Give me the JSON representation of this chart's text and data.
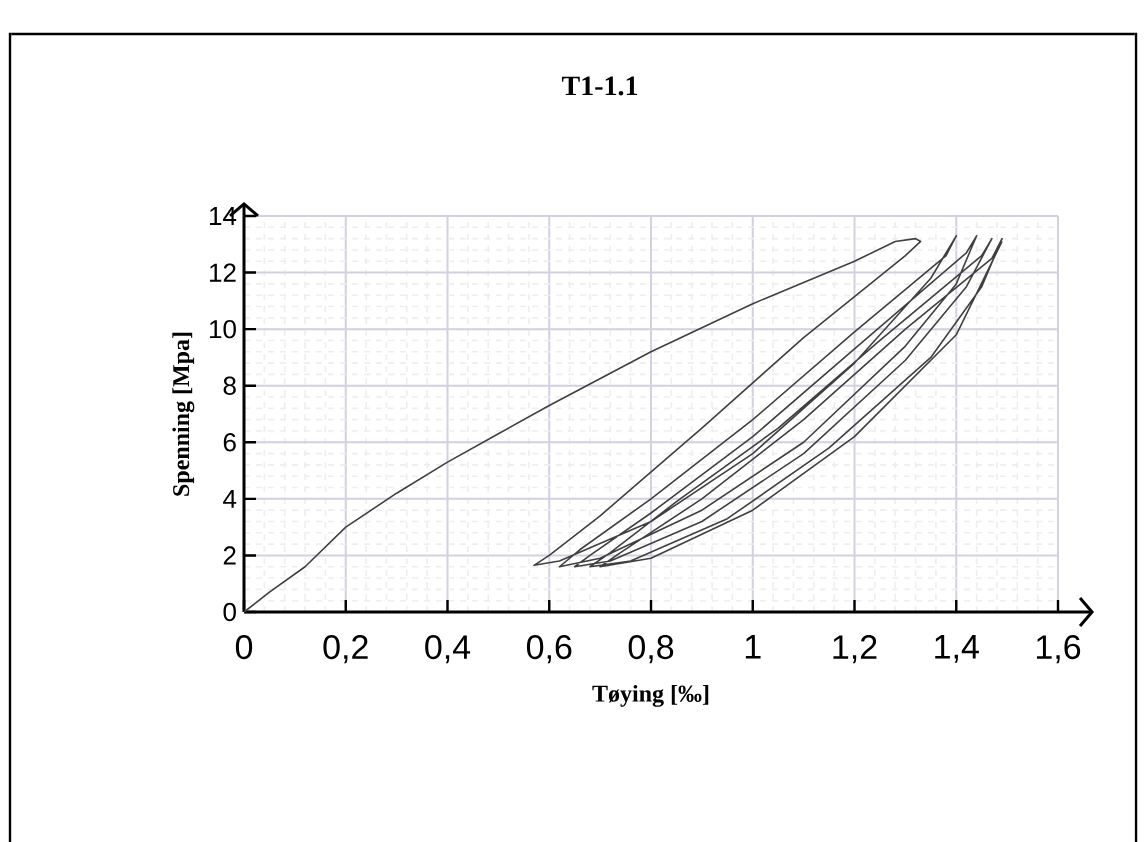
{
  "chart_data": {
    "type": "line",
    "title": "T1-1.1",
    "xlabel": "Tøying [‰]",
    "ylabel": "Spenning [Mpa]",
    "x": [
      0,
      0.05,
      0.12,
      0.2,
      0.3,
      0.4,
      0.5,
      0.6,
      0.8,
      1.0,
      1.2,
      1.28,
      1.32,
      1.33,
      1.3,
      1.1,
      0.9,
      0.7,
      0.6,
      0.57,
      0.62,
      0.8,
      1.0,
      1.2,
      1.35,
      1.4,
      1.38,
      1.2,
      1.0,
      0.8,
      0.66,
      0.62,
      0.7,
      0.9,
      1.1,
      1.3,
      1.4,
      1.44,
      1.42,
      1.2,
      1.0,
      0.8,
      0.68,
      0.65,
      0.72,
      0.9,
      1.1,
      1.3,
      1.42,
      1.47,
      1.45,
      1.25,
      1.05,
      0.85,
      0.72,
      0.68,
      0.76,
      0.95,
      1.15,
      1.35,
      1.45,
      1.49,
      1.47,
      1.3,
      1.1,
      0.9,
      0.74,
      0.7,
      0.8,
      1.0,
      1.2,
      1.4,
      1.49
    ],
    "values": [
      0,
      0.7,
      1.6,
      3.0,
      4.2,
      5.3,
      6.3,
      7.3,
      9.2,
      10.9,
      12.4,
      13.1,
      13.2,
      13.1,
      12.6,
      9.7,
      6.5,
      3.4,
      2.0,
      1.65,
      1.8,
      3.2,
      5.6,
      8.8,
      11.8,
      13.3,
      12.6,
      9.9,
      6.8,
      4.0,
      2.2,
      1.6,
      1.9,
      3.6,
      6.0,
      9.4,
      11.6,
      13.3,
      12.7,
      9.3,
      6.2,
      3.5,
      2.0,
      1.6,
      1.8,
      3.2,
      5.6,
      8.9,
      11.5,
      13.2,
      12.6,
      9.6,
      6.5,
      3.9,
      2.1,
      1.6,
      1.8,
      3.3,
      5.8,
      9.0,
      11.5,
      13.2,
      12.5,
      10.0,
      6.8,
      4.0,
      2.1,
      1.6,
      1.9,
      3.6,
      6.2,
      9.8,
      13.1
    ],
    "color": "#404040",
    "xlim": [
      0,
      1.6
    ],
    "ylim": [
      0,
      14
    ],
    "xticks": [
      0,
      {
        "value": 0.2,
        "label": "0,2"
      },
      {
        "value": 0.4,
        "label": "0,4"
      },
      {
        "value": 0.6,
        "label": "0,6"
      },
      {
        "value": 0.8,
        "label": "0,8"
      },
      1,
      {
        "value": 1.2,
        "label": "1,2"
      },
      {
        "value": 1.4,
        "label": "1,4"
      },
      {
        "value": 1.6,
        "label": "1,6"
      }
    ],
    "yticks": [
      0,
      2,
      4,
      6,
      8,
      10,
      12,
      14
    ],
    "grid": true
  }
}
